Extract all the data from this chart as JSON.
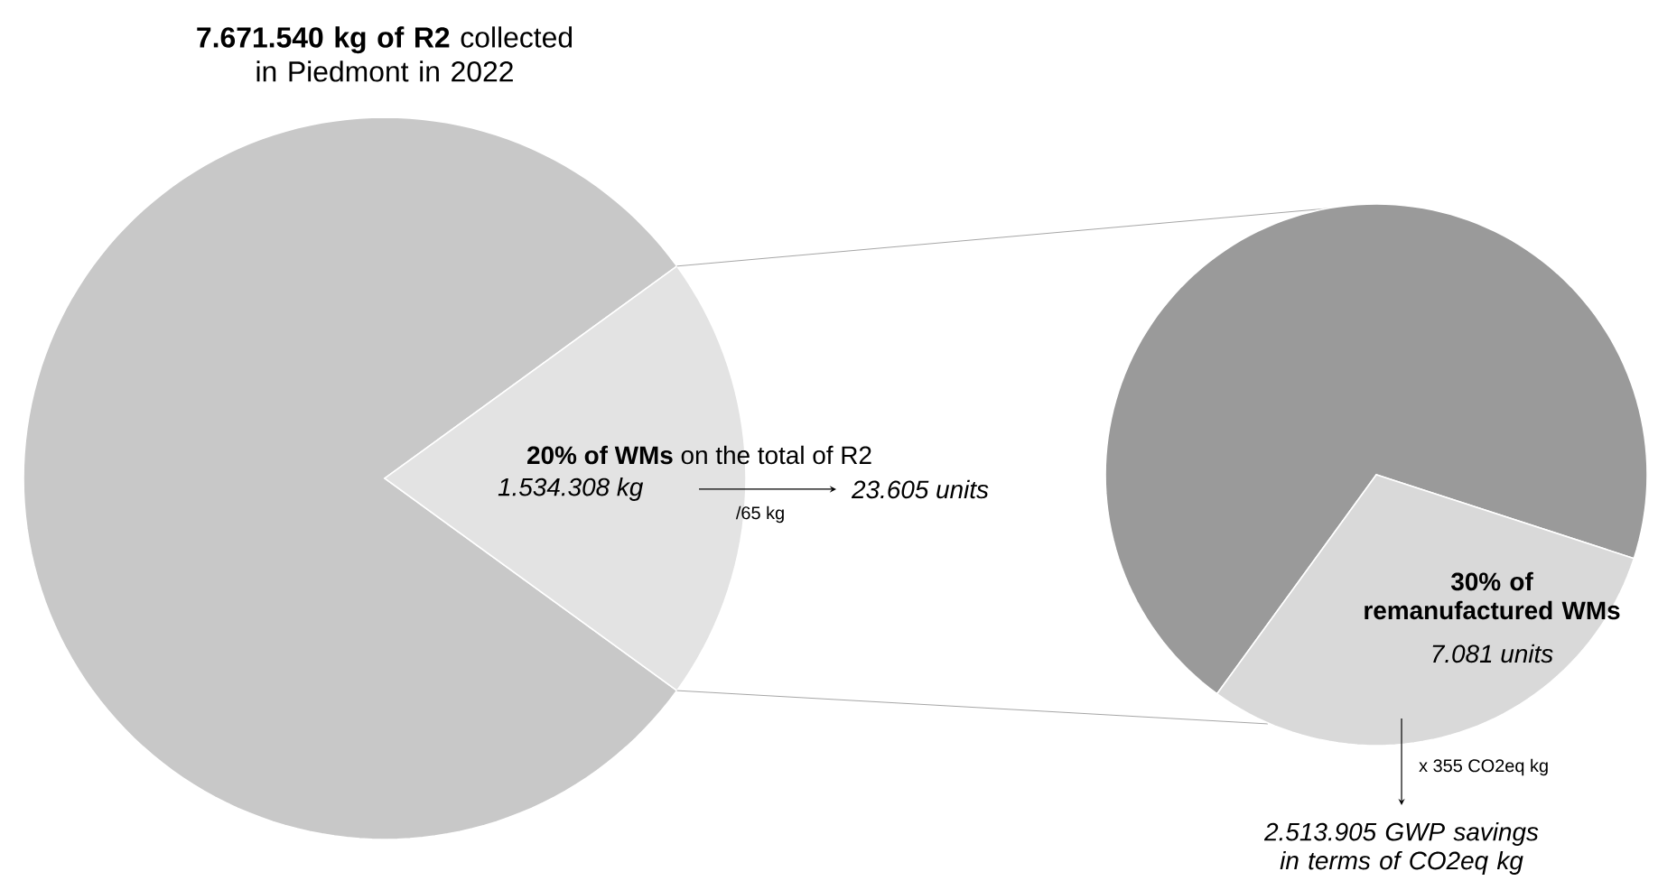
{
  "chart_data": [
    {
      "type": "pie",
      "title": "**7.671.540 kg of R2** collected in Piedmont in 2022",
      "categories": [
        null,
        "**20% of WMs** on the total of R2"
      ],
      "values": [
        80,
        20
      ],
      "colors": [
        "#c8c8c8",
        "#e3e3e3"
      ],
      "annotations": [
        "1.534.308 kg",
        "/65 kg",
        "23.605 units"
      ]
    },
    {
      "type": "pie",
      "categories": [
        null,
        "30% of remanufactured WMs"
      ],
      "values": [
        70,
        30
      ],
      "colors": [
        "#9a9a9a",
        "#d9d9d9"
      ],
      "annotations": [
        "7.081 units",
        "x 355 CO2eq kg",
        "2.513.905 GWP savings in terms of CO2eq kg"
      ]
    }
  ]
}
